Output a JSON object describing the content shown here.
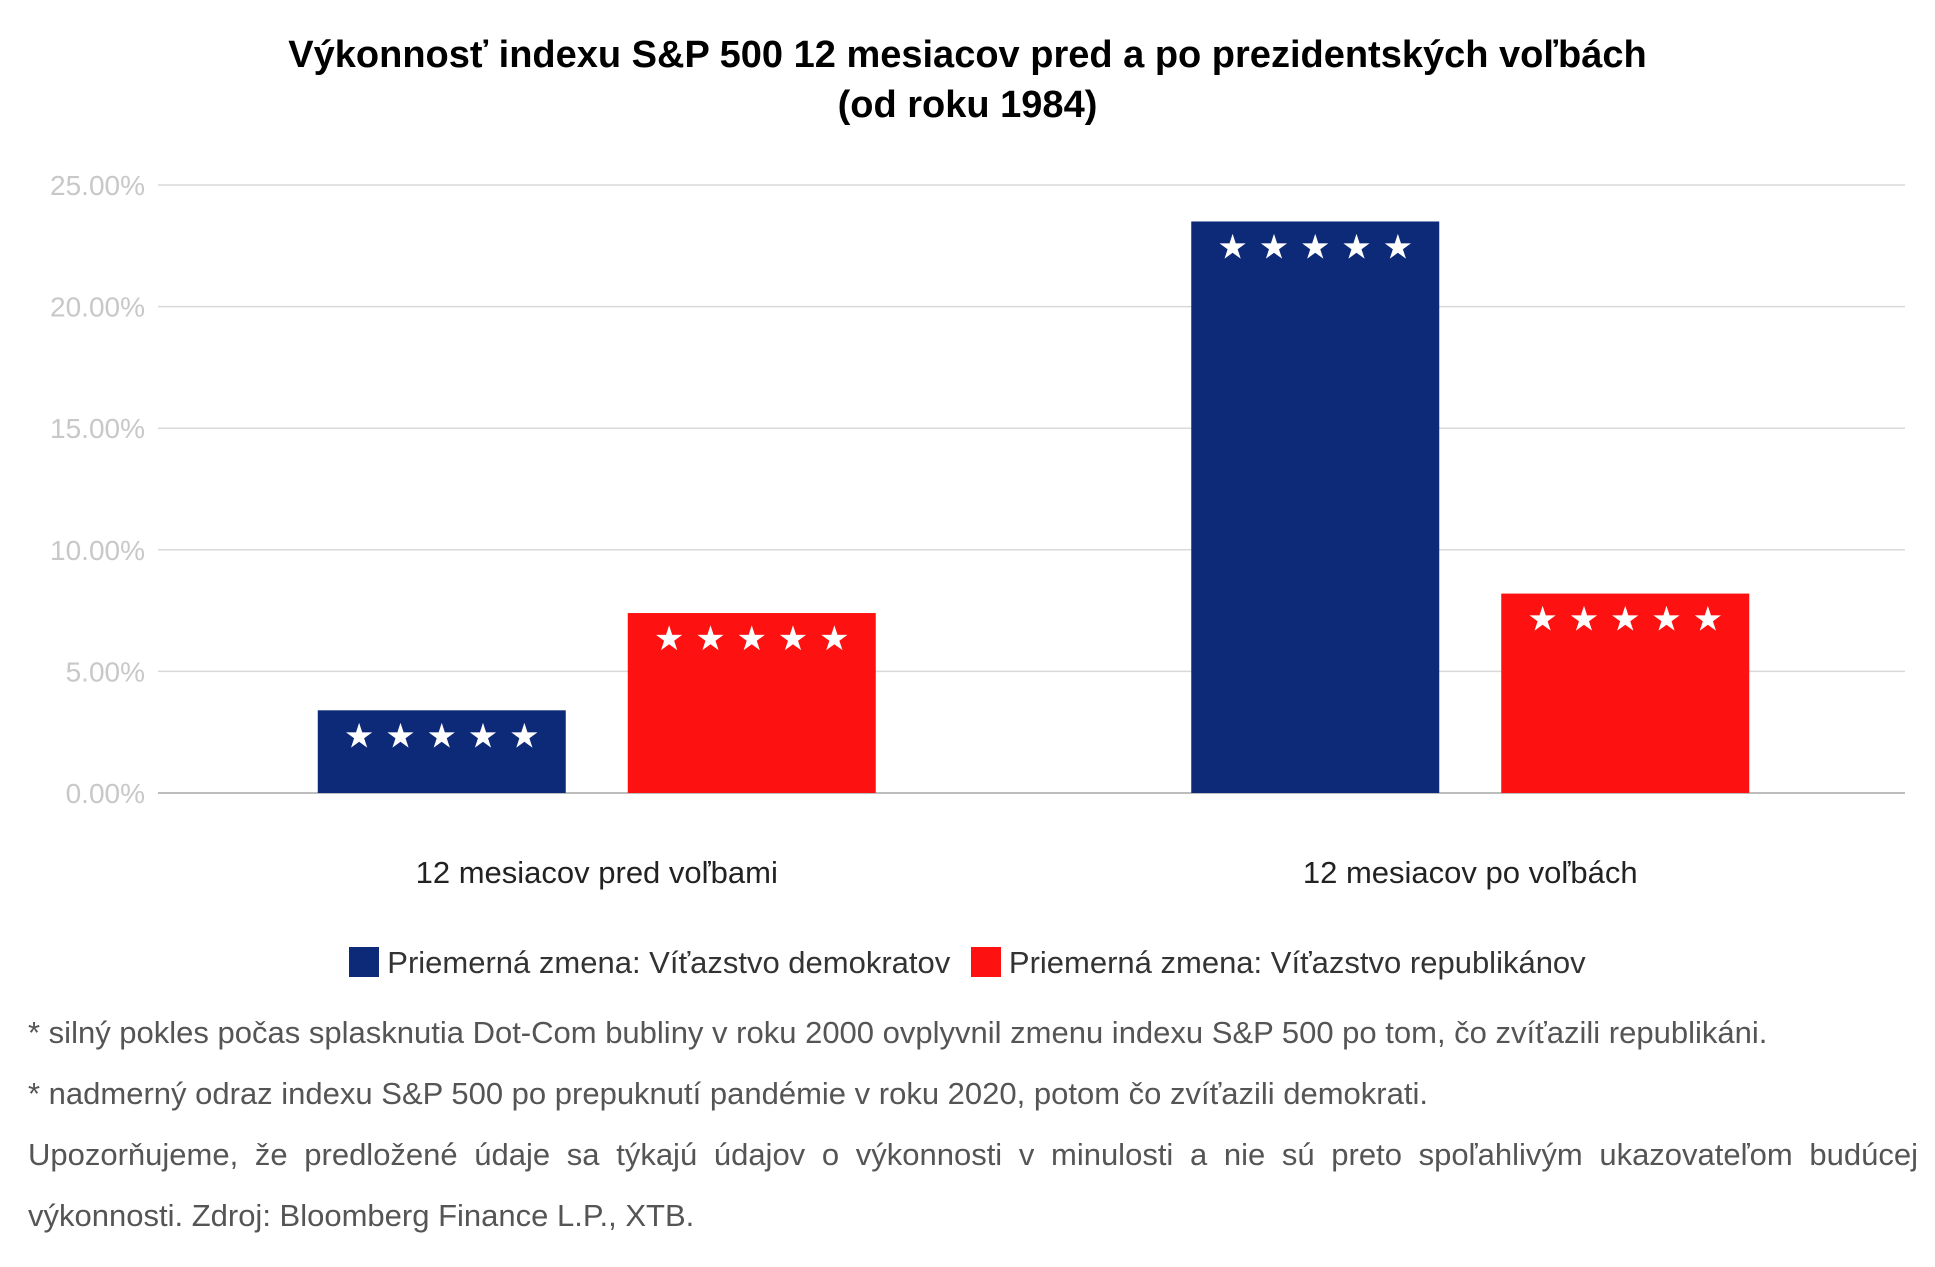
{
  "chart_data": {
    "type": "bar",
    "title_lines": [
      "Výkonnosť indexu S&P 500 12 mesiacov pred a po prezidentských voľbách",
      "(od roku 1984)"
    ],
    "categories": [
      "12 mesiacov pred voľbami",
      "12 mesiacov po voľbách"
    ],
    "series": [
      {
        "name": "Priemerná zmena: Víťazstvo demokratov",
        "color": "#0d2a78",
        "values": [
          3.4,
          23.5
        ]
      },
      {
        "name": "Priemerná zmena: Víťazstvo republikánov",
        "color": "#fe1111",
        "values": [
          7.4,
          8.2
        ]
      }
    ],
    "yticks": [
      "0.00%",
      "5.00%",
      "10.00%",
      "15.00%",
      "20.00%",
      "25.00%"
    ],
    "ylim": [
      0,
      25
    ],
    "grid": true,
    "legend_position": "bottom",
    "bar_decoration": "★ ★ ★ ★ ★"
  },
  "notes": [
    "* silný pokles počas splasknutia Dot-Com bubliny v roku 2000 ovplyvnil zmenu indexu S&P 500 po tom, čo zvíťazili republikáni.",
    "* nadmerný odraz indexu S&P 500 po prepuknutí pandémie v roku 2020, potom čo zvíťazili demokrati.",
    "Upozorňujeme, že predložené údaje sa týkajú údajov o výkonnosti v minulosti a nie sú preto spoľahlivým ukazovateľom budúcej výkonnosti. Zdroj: Bloomberg Finance L.P., XTB."
  ]
}
